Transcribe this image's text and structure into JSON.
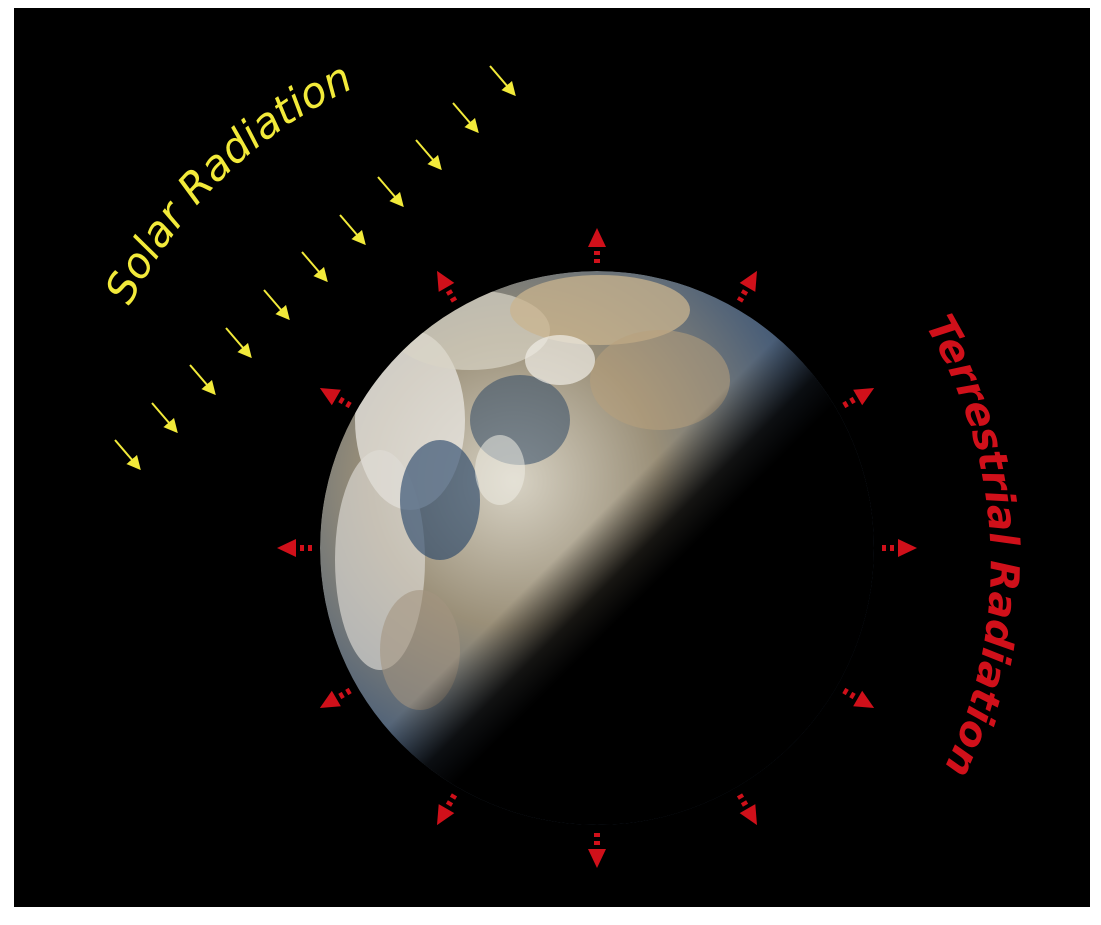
{
  "diagram": {
    "solar_label": "Solar Radiation",
    "terrestrial_label": "Terrestrial Radiation",
    "colors": {
      "background": "#000000",
      "frame": "#ffffff",
      "solar": "#f2ea3a",
      "terrestrial": "#d0101a"
    }
  }
}
